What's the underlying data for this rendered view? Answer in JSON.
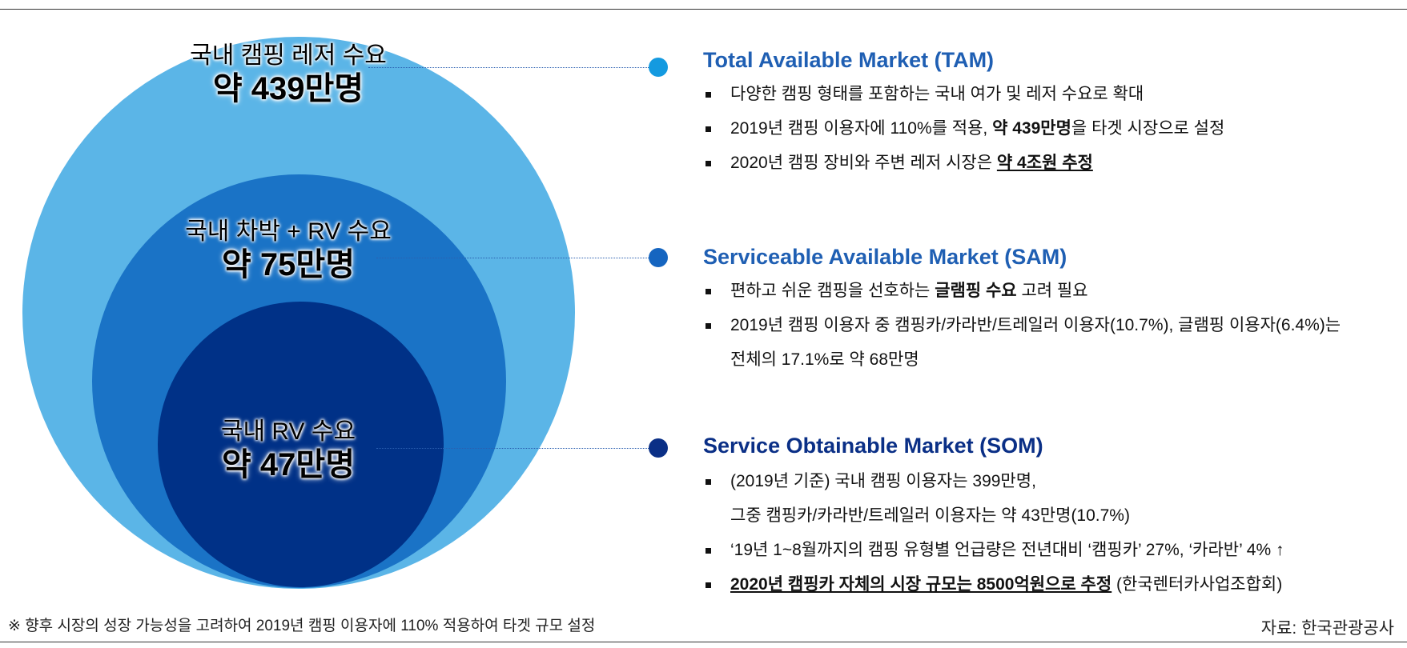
{
  "circles": {
    "tam": {
      "label": "국내 캠핑 레저 수요",
      "value": "약 439만명",
      "color": "#5bb5e7"
    },
    "sam": {
      "label": "국내 차박 + RV 수요",
      "value": "약 75만명",
      "color": "#1a73c6"
    },
    "som": {
      "label": "국내 RV 수요",
      "value": "약 47만명",
      "color": "#003187"
    }
  },
  "tam": {
    "title": "Total Available Market (TAM)",
    "b1": "다양한 캠핑  형태를 포함하는 국내 여가 및 레저 수요로 확대",
    "b2_pre": "2019년 캠핑 이용자에 110%를 적용, ",
    "b2_bold": "약 439만명",
    "b2_post": "을 타겟 시장으로 설정",
    "b3_pre": "2020년 캠핑 장비와 주변 레저 시장은 ",
    "b3_bold": "약 4조원 추정"
  },
  "sam": {
    "title": "Serviceable Available Market (SAM)",
    "b1_pre": "편하고 쉬운 캠핑을 선호하는 ",
    "b1_bold": "글램핑 수요",
    "b1_post": " 고려 필요",
    "b2_line1": "2019년 캠핑 이용자 중 캠핑카/카라반/트레일러 이용자(10.7%), 글램핑 이용자(6.4%)는",
    "b2_line2": "전체의 17.1%로 약 68만명"
  },
  "som": {
    "title": "Service Obtainable Market (SOM)",
    "b1_line1": "(2019년 기준) 국내 캠핑 이용자는 399만명,",
    "b1_line2": "그중 캠핑카/카라반/트레일러 이용자는 약 43만명(10.7%)",
    "b2": "‘19년 1~8월까지의 캠핑 유형별 언급량은 전년대비 ‘캠핑카’ 27%, ‘카라반’ 4% ↑",
    "b3_bold": "2020년 캠핑카 자체의 시장 규모는 8500억원으로 추정",
    "b3_post": " (한국렌터카사업조합회)"
  },
  "footnote": "※ 향후 시장의 성장 가능성을 고려하여 2019년 캠핑 이용자에 110% 적용하여 타겟 규모 설정",
  "source": "자료: 한국관광공사",
  "colors": {
    "dot_tam": "#149ae0",
    "dot_sam": "#1565c0",
    "dot_som": "#0a2f86",
    "heading": "#1f5fb3"
  }
}
